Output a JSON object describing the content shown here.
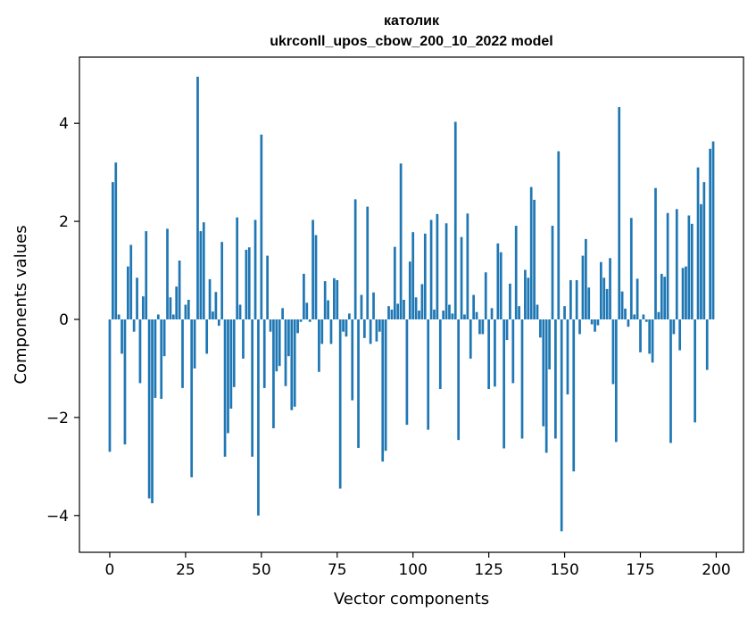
{
  "chart_data": {
    "type": "bar",
    "title": "католик",
    "subtitle": "ukrconll_upos_cbow_200_10_2022 model",
    "xlabel": "Vector components",
    "ylabel": "Components values",
    "xlim": [
      -10,
      209
    ],
    "ylim": [
      -4.75,
      5.35
    ],
    "xticks": [
      0,
      25,
      50,
      75,
      100,
      125,
      150,
      175,
      200
    ],
    "xtick_labels": [
      "0",
      "25",
      "50",
      "75",
      "100",
      "125",
      "150",
      "175",
      "200"
    ],
    "yticks": [
      -4,
      -2,
      0,
      2,
      4
    ],
    "ytick_labels": [
      "−4",
      "−2",
      "0",
      "2",
      "4"
    ],
    "grid": false,
    "legend": "none",
    "bar_color": "#1f77b4",
    "x": [
      0,
      1,
      2,
      3,
      4,
      5,
      6,
      7,
      8,
      9,
      10,
      11,
      12,
      13,
      14,
      15,
      16,
      17,
      18,
      19,
      20,
      21,
      22,
      23,
      24,
      25,
      26,
      27,
      28,
      29,
      30,
      31,
      32,
      33,
      34,
      35,
      36,
      37,
      38,
      39,
      40,
      41,
      42,
      43,
      44,
      45,
      46,
      47,
      48,
      49,
      50,
      51,
      52,
      53,
      54,
      55,
      56,
      57,
      58,
      59,
      60,
      61,
      62,
      63,
      64,
      65,
      66,
      67,
      68,
      69,
      70,
      71,
      72,
      73,
      74,
      75,
      76,
      77,
      78,
      79,
      80,
      81,
      82,
      83,
      84,
      85,
      86,
      87,
      88,
      89,
      90,
      91,
      92,
      93,
      94,
      95,
      96,
      97,
      98,
      99,
      100,
      101,
      102,
      103,
      104,
      105,
      106,
      107,
      108,
      109,
      110,
      111,
      112,
      113,
      114,
      115,
      116,
      117,
      118,
      119,
      120,
      121,
      122,
      123,
      124,
      125,
      126,
      127,
      128,
      129,
      130,
      131,
      132,
      133,
      134,
      135,
      136,
      137,
      138,
      139,
      140,
      141,
      142,
      143,
      144,
      145,
      146,
      147,
      148,
      149,
      150,
      151,
      152,
      153,
      154,
      155,
      156,
      157,
      158,
      159,
      160,
      161,
      162,
      163,
      164,
      165,
      166,
      167,
      168,
      169,
      170,
      171,
      172,
      173,
      174,
      175,
      176,
      177,
      178,
      179,
      180,
      181,
      182,
      183,
      184,
      185,
      186,
      187,
      188,
      189,
      190,
      191,
      192,
      193,
      194,
      195,
      196,
      197,
      198,
      199
    ],
    "values": [
      -2.7,
      2.8,
      3.2,
      0.1,
      -0.7,
      -2.55,
      1.08,
      1.52,
      -0.25,
      0.85,
      -1.3,
      0.47,
      1.8,
      -3.65,
      -3.75,
      -1.6,
      0.1,
      -1.62,
      -0.75,
      1.85,
      0.45,
      0.1,
      0.67,
      1.2,
      -1.4,
      0.3,
      0.4,
      -3.22,
      -1.0,
      4.95,
      1.8,
      1.98,
      -0.7,
      0.82,
      0.16,
      0.56,
      -0.13,
      1.58,
      -2.8,
      -2.32,
      -1.82,
      -1.38,
      2.08,
      0.3,
      -0.8,
      1.42,
      1.47,
      -2.8,
      2.03,
      -4.0,
      3.77,
      -1.4,
      1.3,
      -0.25,
      -2.22,
      -1.06,
      -0.95,
      0.23,
      -1.36,
      -0.75,
      -1.85,
      -1.78,
      -0.28,
      -0.05,
      0.93,
      0.34,
      -0.05,
      2.03,
      1.72,
      -1.07,
      -0.5,
      0.78,
      0.39,
      -0.5,
      0.84,
      0.8,
      -3.45,
      -0.25,
      -0.35,
      0.12,
      -1.65,
      2.45,
      -2.62,
      0.5,
      -0.38,
      2.3,
      -0.5,
      0.55,
      -0.45,
      -0.25,
      -2.9,
      -2.68,
      0.27,
      0.2,
      1.48,
      0.32,
      3.18,
      0.4,
      -2.15,
      1.18,
      1.78,
      0.45,
      0.18,
      0.72,
      1.75,
      -2.25,
      2.03,
      0.2,
      2.15,
      -1.42,
      0.18,
      1.96,
      0.3,
      0.12,
      4.03,
      -2.46,
      1.68,
      0.1,
      2.16,
      -0.8,
      0.5,
      0.15,
      -0.3,
      -0.3,
      0.96,
      -1.42,
      0.23,
      -1.37,
      1.55,
      1.37,
      -2.63,
      -0.42,
      0.73,
      -1.3,
      1.91,
      0.27,
      -2.43,
      1.01,
      0.85,
      2.7,
      2.44,
      0.3,
      -0.37,
      -2.18,
      -2.72,
      -1.02,
      1.91,
      -2.43,
      3.43,
      -4.32,
      0.27,
      -1.53,
      0.8,
      -3.1,
      0.8,
      -0.3,
      1.3,
      1.64,
      0.65,
      -0.1,
      -0.25,
      -0.12,
      1.17,
      0.85,
      0.62,
      1.25,
      -1.32,
      -2.5,
      4.33,
      0.57,
      0.22,
      -0.15,
      2.07,
      0.1,
      0.83,
      -0.67,
      0.1,
      -0.05,
      -0.7,
      -0.88,
      2.68,
      0.15,
      0.93,
      0.87,
      2.17,
      -2.52,
      -0.3,
      2.25,
      -0.63,
      1.05,
      1.08,
      2.12,
      1.95,
      -2.1,
      3.1,
      2.35,
      2.8,
      -1.03,
      3.48,
      3.63
    ]
  }
}
